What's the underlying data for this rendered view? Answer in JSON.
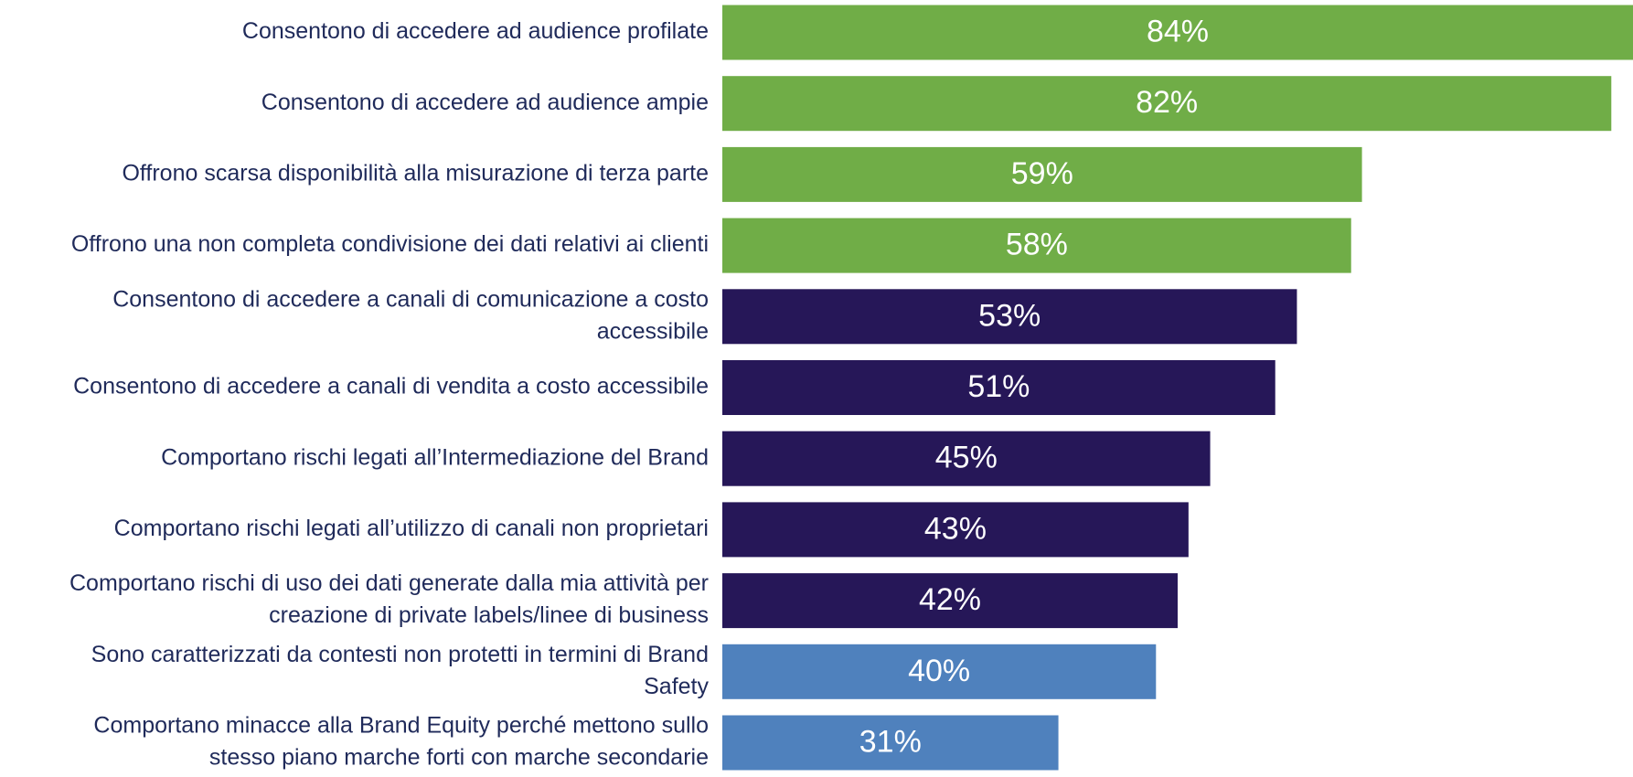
{
  "chart_data": {
    "type": "bar",
    "orientation": "horizontal",
    "categories": [
      [
        "Consentono di accedere ad audience profilate"
      ],
      [
        "Consentono di accedere ad audience ampie"
      ],
      [
        "Offrono scarsa disponibilità alla misurazione di terza parte"
      ],
      [
        "Offrono una non completa condivisione dei dati relativi ai clienti"
      ],
      [
        "Consentono di accedere a canali di comunicazione a costo",
        "accessibile"
      ],
      [
        "Consentono di accedere a canali di vendita a costo accessibile"
      ],
      [
        "Comportano rischi legati all’Intermediazione del Brand"
      ],
      [
        "Comportano rischi legati all’utilizzo di canali non proprietari"
      ],
      [
        "Comportano rischi di uso dei dati generate dalla mia attività per",
        "creazione di private labels/linee di business"
      ],
      [
        "Sono caratterizzati da contesti non protetti in termini di Brand",
        "Safety"
      ],
      [
        "Comportano minacce alla Brand Equity perché mettono sullo",
        "stesso piano marche forti con marche secondarie"
      ]
    ],
    "values": [
      84,
      82,
      59,
      58,
      53,
      51,
      45,
      43,
      42,
      40,
      31
    ],
    "value_labels": [
      "84%",
      "82%",
      "59%",
      "58%",
      "53%",
      "51%",
      "45%",
      "43%",
      "42%",
      "40%",
      "31%"
    ],
    "colors": [
      "#70ad47",
      "#70ad47",
      "#70ad47",
      "#70ad47",
      "#261758",
      "#261758",
      "#261758",
      "#261758",
      "#261758",
      "#4f81bd",
      "#4f81bd"
    ]
  }
}
